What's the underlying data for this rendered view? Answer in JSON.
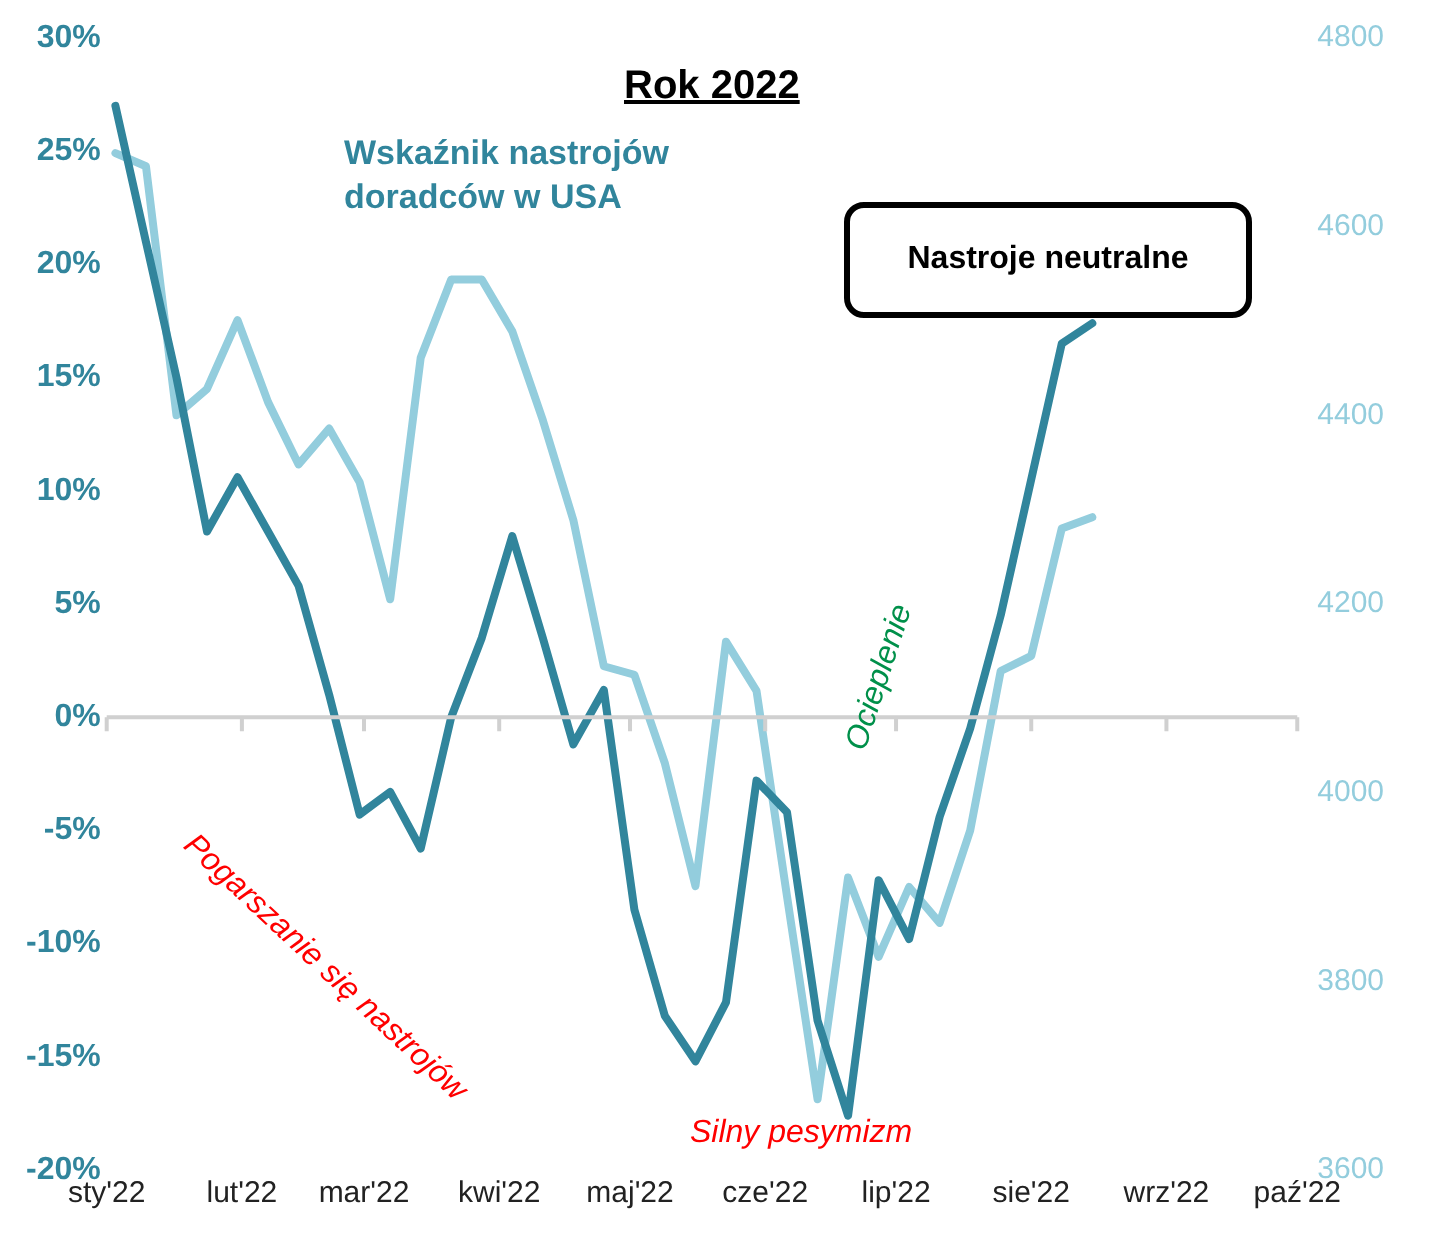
{
  "chart_data": {
    "type": "line",
    "title": "Rok 2022",
    "x": [
      "2022-01-03",
      "2022-01-10",
      "2022-01-17",
      "2022-01-24",
      "2022-01-31",
      "2022-02-07",
      "2022-02-14",
      "2022-02-21",
      "2022-02-28",
      "2022-03-07",
      "2022-03-14",
      "2022-03-21",
      "2022-03-28",
      "2022-04-04",
      "2022-04-11",
      "2022-04-18",
      "2022-04-25",
      "2022-05-02",
      "2022-05-09",
      "2022-05-16",
      "2022-05-23",
      "2022-05-30",
      "2022-06-06",
      "2022-06-13",
      "2022-06-20",
      "2022-06-27",
      "2022-07-04",
      "2022-07-11",
      "2022-07-18",
      "2022-07-25",
      "2022-08-01",
      "2022-08-08",
      "2022-08-15"
    ],
    "series": [
      {
        "name": "Wskaźnik nastrojów doradców w USA",
        "color": "#31859c",
        "values": [
          27,
          21,
          15,
          8.2,
          10.6,
          8.2,
          5.8,
          1,
          -4.3,
          -3.3,
          -5.8,
          0,
          3.5,
          8,
          3.5,
          -1.2,
          1.2,
          -8.5,
          -13.2,
          -15.2,
          -12.6,
          -2.8,
          -4.2,
          -13.4,
          -17.6,
          -7.2,
          -9.8,
          -4.4,
          -0.5,
          4.5,
          10.5,
          16.5,
          17.4
        ]
      },
      {
        "color": "#93cddd",
        "axis": "y2",
        "values": [
          4678,
          4664,
          4400,
          4428,
          4501,
          4414,
          4348,
          4386,
          4329,
          4205,
          4461,
          4544,
          4544,
          4489,
          4395,
          4289,
          4134,
          4125,
          4031,
          3901,
          4160,
          4108,
          3890,
          3675,
          3910,
          3826,
          3900,
          3862,
          3960,
          4129,
          4145,
          4280,
          4292
        ]
      }
    ],
    "xlim": [
      "2022-01-01",
      "2022-10-01"
    ],
    "xticks": [
      {
        "value": "2022-01-01",
        "label": "sty'22"
      },
      {
        "value": "2022-02-01",
        "label": "lut'22"
      },
      {
        "value": "2022-03-01",
        "label": "mar'22"
      },
      {
        "value": "2022-04-01",
        "label": "kwi'22"
      },
      {
        "value": "2022-05-01",
        "label": "maj'22"
      },
      {
        "value": "2022-06-01",
        "label": "cze'22"
      },
      {
        "value": "2022-07-01",
        "label": "lip'22"
      },
      {
        "value": "2022-08-01",
        "label": "sie'22"
      },
      {
        "value": "2022-09-01",
        "label": "wrz'22"
      },
      {
        "value": "2022-10-01",
        "label": "paź'22"
      }
    ],
    "ylim": [
      -20,
      30
    ],
    "yticks": [
      {
        "value": -20,
        "label": "-20%"
      },
      {
        "value": -15,
        "label": "-15%"
      },
      {
        "value": -10,
        "label": "-10%"
      },
      {
        "value": -5,
        "label": "-5%"
      },
      {
        "value": 0,
        "label": "0%"
      },
      {
        "value": 5,
        "label": "5%"
      },
      {
        "value": 10,
        "label": "10%"
      },
      {
        "value": 15,
        "label": "15%"
      },
      {
        "value": 20,
        "label": "20%"
      },
      {
        "value": 25,
        "label": "25%"
      },
      {
        "value": 30,
        "label": "30%"
      }
    ],
    "y2lim": [
      3600,
      4800
    ],
    "y2ticks": [
      3600,
      3800,
      4000,
      4200,
      4400,
      4600,
      4800
    ],
    "annotations": [
      "Nastroje neutralne",
      "Pogarszanie się nastrojów",
      "Ocieplenie",
      "Silny pesymizm"
    ],
    "ref_lines": [
      {
        "axis": "y",
        "value": 0,
        "color": "#d0d0d0"
      }
    ],
    "legend": "top left",
    "grid": false,
    "marker": "none",
    "line_style": "solid"
  }
}
